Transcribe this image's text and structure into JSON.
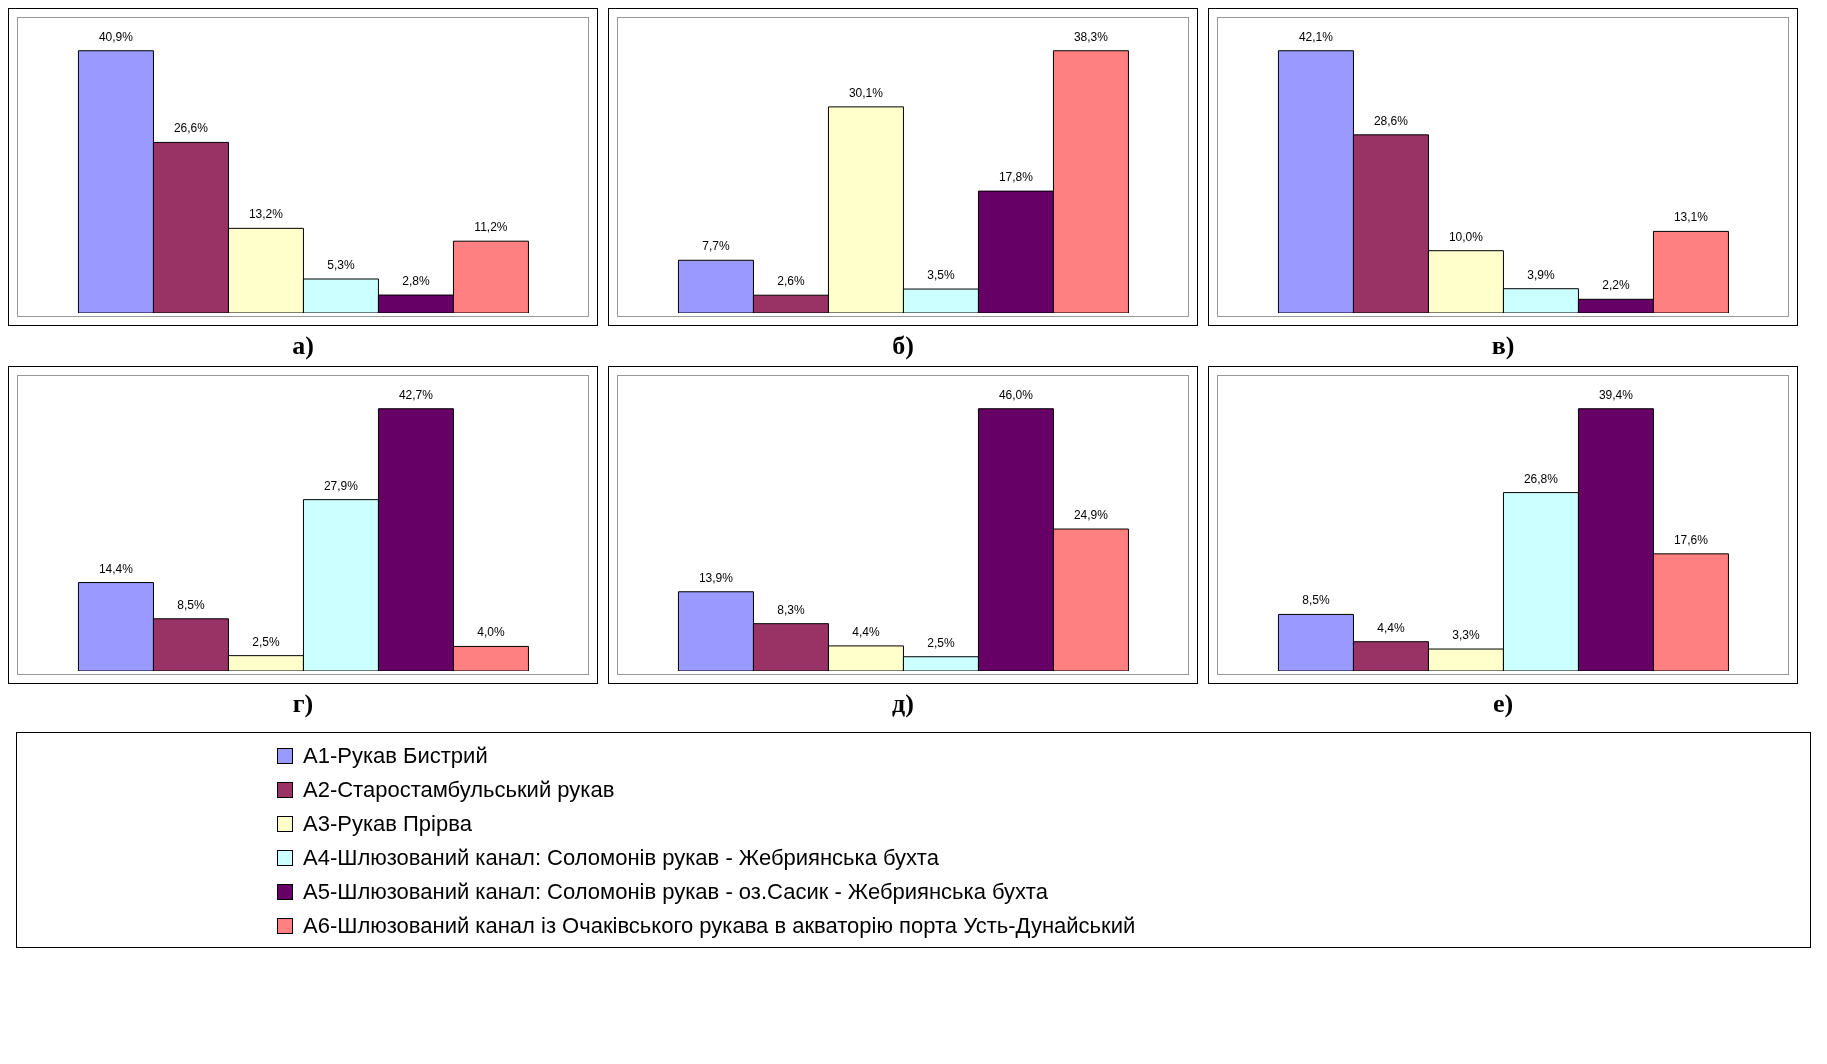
{
  "chart_data": [
    {
      "type": "bar",
      "title": "а)",
      "categories": [
        null
      ],
      "series": [
        {
          "color": "#9999ff",
          "values": [
            40.9
          ],
          "value_labels": [
            "40,9%"
          ]
        },
        {
          "color": "#993366",
          "values": [
            26.6
          ],
          "value_labels": [
            "26,6%"
          ]
        },
        {
          "color": "#ffffcc",
          "values": [
            13.2
          ],
          "value_labels": [
            "13,2%"
          ]
        },
        {
          "color": "#ccffff",
          "values": [
            5.3
          ],
          "value_labels": [
            "5,3%"
          ]
        },
        {
          "color": "#660066",
          "values": [
            2.8
          ],
          "value_labels": [
            "2,8%"
          ]
        },
        {
          "color": "#ff8080",
          "values": [
            11.2
          ],
          "value_labels": [
            "11,2%"
          ]
        }
      ]
    },
    {
      "type": "bar",
      "title": "б)",
      "categories": [
        null
      ],
      "series": [
        {
          "color": "#9999ff",
          "values": [
            7.7
          ],
          "value_labels": [
            "7,7%"
          ]
        },
        {
          "color": "#993366",
          "values": [
            2.6
          ],
          "value_labels": [
            "2,6%"
          ]
        },
        {
          "color": "#ffffcc",
          "values": [
            30.1
          ],
          "value_labels": [
            "30,1%"
          ]
        },
        {
          "color": "#ccffff",
          "values": [
            3.5
          ],
          "value_labels": [
            "3,5%"
          ]
        },
        {
          "color": "#660066",
          "values": [
            17.8
          ],
          "value_labels": [
            "17,8%"
          ]
        },
        {
          "color": "#ff8080",
          "values": [
            38.3
          ],
          "value_labels": [
            "38,3%"
          ]
        }
      ]
    },
    {
      "type": "bar",
      "title": "в)",
      "categories": [
        null
      ],
      "series": [
        {
          "color": "#9999ff",
          "values": [
            42.1
          ],
          "value_labels": [
            "42,1%"
          ]
        },
        {
          "color": "#993366",
          "values": [
            28.6
          ],
          "value_labels": [
            "28,6%"
          ]
        },
        {
          "color": "#ffffcc",
          "values": [
            10.0
          ],
          "value_labels": [
            "10,0%"
          ]
        },
        {
          "color": "#ccffff",
          "values": [
            3.9
          ],
          "value_labels": [
            "3,9%"
          ]
        },
        {
          "color": "#660066",
          "values": [
            2.2
          ],
          "value_labels": [
            "2,2%"
          ]
        },
        {
          "color": "#ff8080",
          "values": [
            13.1
          ],
          "value_labels": [
            "13,1%"
          ]
        }
      ]
    },
    {
      "type": "bar",
      "title": "г)",
      "categories": [
        null
      ],
      "series": [
        {
          "color": "#9999ff",
          "values": [
            14.4
          ],
          "value_labels": [
            "14,4%"
          ]
        },
        {
          "color": "#993366",
          "values": [
            8.5
          ],
          "value_labels": [
            "8,5%"
          ]
        },
        {
          "color": "#ffffcc",
          "values": [
            2.5
          ],
          "value_labels": [
            "2,5%"
          ]
        },
        {
          "color": "#ccffff",
          "values": [
            27.9
          ],
          "value_labels": [
            "27,9%"
          ]
        },
        {
          "color": "#660066",
          "values": [
            42.7
          ],
          "value_labels": [
            "42,7%"
          ]
        },
        {
          "color": "#ff8080",
          "values": [
            4.0
          ],
          "value_labels": [
            "4,0%"
          ]
        }
      ]
    },
    {
      "type": "bar",
      "title": "д)",
      "categories": [
        null
      ],
      "series": [
        {
          "color": "#9999ff",
          "values": [
            13.9
          ],
          "value_labels": [
            "13,9%"
          ]
        },
        {
          "color": "#993366",
          "values": [
            8.3
          ],
          "value_labels": [
            "8,3%"
          ]
        },
        {
          "color": "#ffffcc",
          "values": [
            4.4
          ],
          "value_labels": [
            "4,4%"
          ]
        },
        {
          "color": "#ccffff",
          "values": [
            2.5
          ],
          "value_labels": [
            "2,5%"
          ]
        },
        {
          "color": "#660066",
          "values": [
            46.0
          ],
          "value_labels": [
            "46,0%"
          ]
        },
        {
          "color": "#ff8080",
          "values": [
            24.9
          ],
          "value_labels": [
            "24,9%"
          ]
        }
      ]
    },
    {
      "type": "bar",
      "title": "е)",
      "categories": [
        null
      ],
      "legend": "bottom",
      "series": [
        {
          "name": "А1-Рукав Бистрий",
          "color": "#9999ff",
          "values": [
            8.5
          ],
          "value_labels": [
            "8,5%"
          ]
        },
        {
          "name": "А2-Старостамбульський рукав",
          "color": "#993366",
          "values": [
            4.4
          ],
          "value_labels": [
            "4,4%"
          ]
        },
        {
          "name": "А3-Рукав Прірва",
          "color": "#ffffcc",
          "values": [
            3.3
          ],
          "value_labels": [
            "3,3%"
          ]
        },
        {
          "name": "А4-Шлюзований канал: Соломонів рукав - Жебриянська бухта",
          "color": "#ccffff",
          "values": [
            26.8
          ],
          "value_labels": [
            "26,8%"
          ]
        },
        {
          "name": "А5-Шлюзований канал: Соломонів рукав - оз.Сасик - Жебриянська бухта",
          "color": "#660066",
          "values": [
            39.4
          ],
          "value_labels": [
            "39,4%"
          ]
        },
        {
          "name": "А6-Шлюзований канал із Очаківського рукава в акваторію порта Усть-Дунайський",
          "color": "#ff8080",
          "values": [
            17.6
          ],
          "value_labels": [
            "17,6%"
          ]
        }
      ]
    }
  ]
}
